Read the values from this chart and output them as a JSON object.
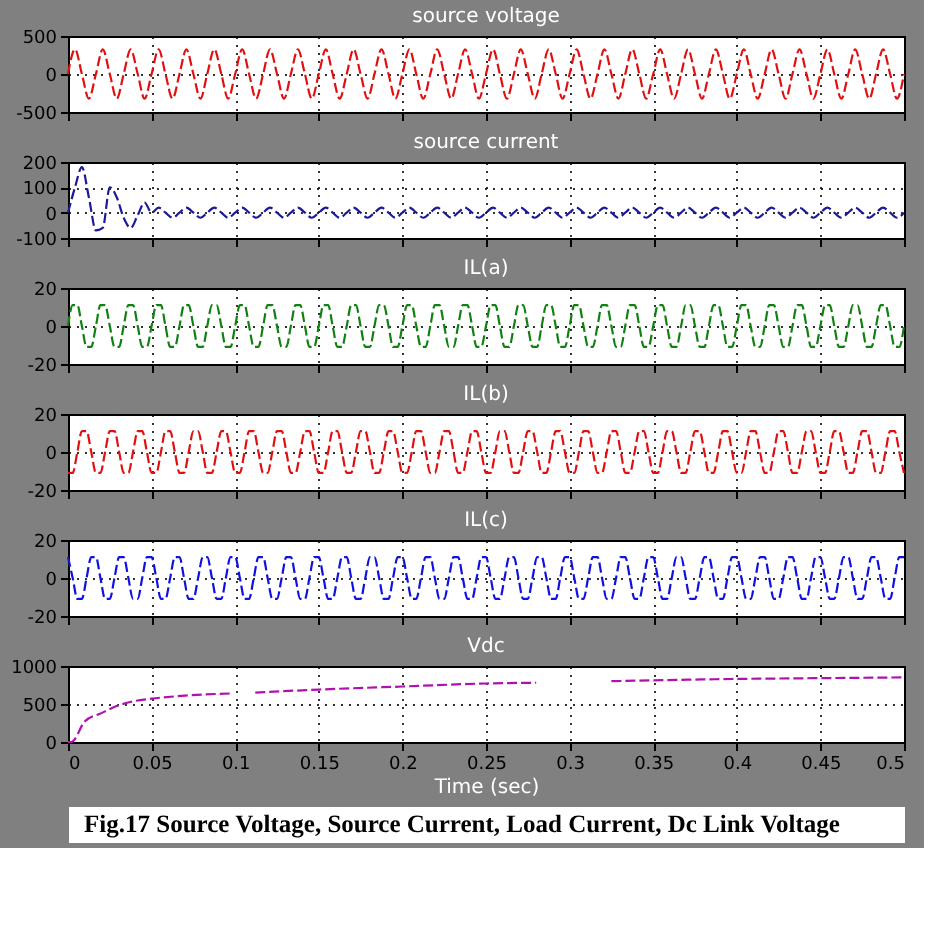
{
  "chart_data": [
    {
      "type": "line",
      "line_style": "dashed",
      "title": "source voltage",
      "color": "#e01010",
      "xlim": [
        0,
        0.5
      ],
      "xticks": [
        0,
        0.05,
        0.1,
        0.15,
        0.2,
        0.25,
        0.3,
        0.35,
        0.4,
        0.45,
        0.5
      ],
      "ylim": [
        -500,
        500
      ],
      "yticks": [
        -500,
        0,
        500
      ],
      "grid": true,
      "tick_labels": "y",
      "x": [
        0,
        0.0042,
        0.0083,
        0.0125,
        0.0167,
        0.0208,
        0.025,
        0.0292,
        0.0333,
        0.0375,
        0.0417,
        0.0458,
        0.05,
        0.0542,
        0.0583,
        0.0625,
        0.0667,
        0.0708,
        0.075,
        0.0792,
        0.0833,
        0.0875,
        0.0917,
        0.0958,
        0.1,
        0.1042,
        0.1083,
        0.1125,
        0.1167,
        0.1208,
        0.125,
        0.1292,
        0.1333,
        0.1375,
        0.1417,
        0.1458,
        0.15,
        0.1542,
        0.1583,
        0.1625,
        0.1667,
        0.1708,
        0.175,
        0.1792,
        0.1833,
        0.1875,
        0.1917,
        0.1958,
        0.2,
        0.2042,
        0.2083,
        0.2125,
        0.2167,
        0.2208,
        0.225,
        0.2292,
        0.2333,
        0.2375,
        0.2417,
        0.2458,
        0.25,
        0.2542,
        0.2583,
        0.2625,
        0.2667,
        0.2708,
        0.275,
        0.2792,
        0.2833,
        0.2875,
        0.2917,
        0.2958,
        0.3,
        0.3042,
        0.3083,
        0.3125,
        0.3167,
        0.3208,
        0.325,
        0.3292,
        0.3333,
        0.3375,
        0.3417,
        0.3458,
        0.35,
        0.3542,
        0.3583,
        0.3625,
        0.3667,
        0.3708,
        0.375,
        0.3792,
        0.3833,
        0.3875,
        0.3917,
        0.3958,
        0.4,
        0.4042,
        0.4083,
        0.4125,
        0.4167,
        0.4208,
        0.425,
        0.4292,
        0.4333,
        0.4375,
        0.4417,
        0.4458,
        0.45,
        0.4542,
        0.4583,
        0.4625,
        0.4667,
        0.4708,
        0.475,
        0.4792,
        0.4833,
        0.4875,
        0.4917,
        0.4958,
        0.5
      ],
      "values": [
        0,
        325,
        0,
        -325,
        0,
        325,
        0,
        -325,
        0,
        325,
        0,
        -325,
        0,
        325,
        0,
        -325,
        0,
        325,
        0,
        -325,
        0,
        325,
        0,
        -325,
        0,
        325,
        0,
        -325,
        0,
        325,
        0,
        -325,
        0,
        325,
        0,
        -325,
        0,
        325,
        0,
        -325,
        0,
        325,
        0,
        -325,
        0,
        325,
        0,
        -325,
        0,
        325,
        0,
        -325,
        0,
        325,
        0,
        -325,
        0,
        325,
        0,
        -325,
        0,
        325,
        0,
        -325,
        0,
        325,
        0,
        -325,
        0,
        325,
        0,
        -325,
        0,
        325,
        0,
        -325,
        0,
        325,
        0,
        -325,
        0,
        325,
        0,
        -325,
        0,
        325,
        0,
        -325,
        0,
        325,
        0,
        -325,
        0,
        325,
        0,
        -325,
        0,
        325,
        0,
        -325,
        0,
        325,
        0,
        -325,
        0,
        325,
        0,
        -325,
        0,
        325,
        0,
        -325,
        0,
        325,
        0,
        -325,
        0,
        325,
        0,
        -325,
        0
      ]
    },
    {
      "type": "line",
      "line_style": "dashed",
      "title": "source current",
      "color": "#1a1a9a",
      "xlim": [
        0,
        0.5
      ],
      "xticks": [
        0,
        0.05,
        0.1,
        0.15,
        0.2,
        0.25,
        0.3,
        0.35,
        0.4,
        0.45,
        0.5
      ],
      "ylim": [
        -100,
        200
      ],
      "yticks": [
        -100,
        0,
        100,
        200
      ],
      "grid": true,
      "tick_labels": "y",
      "x": [
        0,
        0.0042,
        0.0083,
        0.0125,
        0.0167,
        0.0208,
        0.025,
        0.0292,
        0.0333,
        0.0375,
        0.0417,
        0.0458,
        0.05,
        0.0542,
        0.0583,
        0.0625,
        0.0667,
        0.0708,
        0.075,
        0.0792,
        0.0833,
        0.0875,
        0.0917,
        0.0958,
        0.1,
        0.1042,
        0.1083,
        0.1125,
        0.1167,
        0.1208,
        0.125,
        0.1292,
        0.1333,
        0.1375,
        0.1417,
        0.1458,
        0.15,
        0.1542,
        0.1583,
        0.1625,
        0.1667,
        0.1708,
        0.175,
        0.1792,
        0.1833,
        0.1875,
        0.1917,
        0.1958,
        0.2,
        0.2042,
        0.2083,
        0.2125,
        0.2167,
        0.2208,
        0.225,
        0.2292,
        0.2333,
        0.2375,
        0.2417,
        0.2458,
        0.25,
        0.2542,
        0.2583,
        0.2625,
        0.2667,
        0.2708,
        0.275,
        0.2792,
        0.2833,
        0.2875,
        0.2917,
        0.2958,
        0.3,
        0.3042,
        0.3083,
        0.3125,
        0.3167,
        0.3208,
        0.325,
        0.3292,
        0.3333,
        0.3375,
        0.3417,
        0.3458,
        0.35,
        0.3542,
        0.3583,
        0.3625,
        0.3667,
        0.3708,
        0.375,
        0.3792,
        0.3833,
        0.3875,
        0.3917,
        0.3958,
        0.4,
        0.4042,
        0.4083,
        0.4125,
        0.4167,
        0.4208,
        0.425,
        0.4292,
        0.4333,
        0.4375,
        0.4417,
        0.4458,
        0.45,
        0.4542,
        0.4583,
        0.4625,
        0.4667,
        0.4708,
        0.475,
        0.4792,
        0.4833,
        0.4875,
        0.4917,
        0.4958,
        0.5
      ],
      "values": [
        0,
        100,
        180,
        60,
        -70,
        -60,
        100,
        60,
        -20,
        -60,
        -10,
        40,
        0,
        20,
        0,
        -20,
        0,
        20,
        0,
        -20,
        0,
        20,
        0,
        -20,
        0,
        20,
        0,
        -20,
        0,
        20,
        0,
        -20,
        0,
        20,
        0,
        -20,
        0,
        20,
        0,
        -20,
        0,
        20,
        0,
        -20,
        0,
        20,
        0,
        -20,
        0,
        20,
        0,
        -20,
        0,
        20,
        0,
        -20,
        0,
        20,
        0,
        -20,
        0,
        20,
        0,
        -20,
        0,
        20,
        0,
        -20,
        0,
        20,
        0,
        -20,
        0,
        20,
        0,
        -20,
        0,
        20,
        0,
        -20,
        0,
        20,
        0,
        -20,
        0,
        20,
        0,
        -20,
        0,
        20,
        0,
        -20,
        0,
        20,
        0,
        -20,
        0,
        20,
        0,
        -20,
        0,
        20,
        0,
        -20,
        0,
        20,
        0,
        -20,
        0,
        20,
        0,
        -20,
        0,
        20,
        0,
        -20,
        0,
        20,
        0,
        -20,
        0
      ]
    },
    {
      "type": "line",
      "line_style": "dashed",
      "title": "IL(a)",
      "color": "#108010",
      "xlim": [
        0,
        0.5
      ],
      "xticks": [
        0,
        0.05,
        0.1,
        0.15,
        0.2,
        0.25,
        0.3,
        0.35,
        0.4,
        0.45,
        0.5
      ],
      "ylim": [
        -20,
        20
      ],
      "yticks": [
        -20,
        0,
        20
      ],
      "grid": true,
      "tick_labels": "y",
      "x": [
        0,
        0.0028,
        0.0056,
        0.0083,
        0.0111,
        0.0139,
        0.0167,
        0.0194,
        0.0222,
        0.025,
        0.0278,
        0.0306,
        0.0333,
        0.0361,
        0.0389,
        0.0417,
        0.0444,
        0.0472,
        0.05,
        0.0528,
        0.0556,
        0.0583,
        0.0611,
        0.0639,
        0.0667,
        0.0694,
        0.0722,
        0.075,
        0.0778,
        0.0806,
        0.0833,
        0.0861,
        0.0889,
        0.0917,
        0.0944,
        0.0972,
        0.1,
        0.1028,
        0.1056,
        0.1083,
        0.1111,
        0.1139,
        0.1167,
        0.1194,
        0.1222,
        0.125,
        0.1278,
        0.1306,
        0.1333,
        0.1361,
        0.1389,
        0.1417,
        0.1444,
        0.1472,
        0.15,
        0.1528,
        0.1556,
        0.1583,
        0.1611,
        0.1639,
        0.1667,
        0.1694,
        0.1722,
        0.175,
        0.1778,
        0.1806,
        0.1833,
        0.1861,
        0.1889,
        0.1917,
        0.1944,
        0.1972,
        0.2,
        0.2028,
        0.2056,
        0.2083,
        0.2111,
        0.2139,
        0.2167,
        0.2194,
        0.2222,
        0.225,
        0.2278,
        0.2306,
        0.2333,
        0.2361,
        0.2389,
        0.2417,
        0.2444,
        0.2472,
        0.25,
        0.2528,
        0.2556,
        0.2583,
        0.2611,
        0.2639,
        0.2667,
        0.2694,
        0.2722,
        0.275,
        0.2778,
        0.2806,
        0.2833,
        0.2861,
        0.2889,
        0.2917,
        0.2944,
        0.2972,
        0.3,
        0.3028,
        0.3056,
        0.3083,
        0.3111,
        0.3139,
        0.3167,
        0.3194,
        0.3222,
        0.325,
        0.3278,
        0.3306,
        0.3333,
        0.3361,
        0.3389,
        0.3417,
        0.3444,
        0.3472,
        0.35,
        0.3528,
        0.3556,
        0.3583,
        0.3611,
        0.3639,
        0.3667,
        0.3694,
        0.3722,
        0.375,
        0.3778,
        0.3806,
        0.3833,
        0.3861,
        0.3889,
        0.3917,
        0.3944,
        0.3972,
        0.4,
        0.4028,
        0.4056,
        0.4083,
        0.4111,
        0.4139,
        0.4167,
        0.4194,
        0.4222,
        0.425,
        0.4278,
        0.4306,
        0.4333,
        0.4361,
        0.4389,
        0.4417,
        0.4444,
        0.4472,
        0.45,
        0.4528,
        0.4556,
        0.4583,
        0.4611,
        0.4639,
        0.4667,
        0.4694,
        0.4722,
        0.475,
        0.4778,
        0.4806,
        0.4833,
        0.4861,
        0.4889,
        0.4917,
        0.4944,
        0.4972,
        0.5
      ],
      "values": [
        0,
        11,
        11,
        0,
        -11,
        -11,
        0,
        11,
        11,
        0,
        -11,
        -11,
        0,
        11,
        11,
        0,
        -11,
        -11,
        0,
        11,
        11,
        0,
        -11,
        -11,
        0,
        11,
        11,
        0,
        -11,
        -11,
        0,
        11,
        11,
        0,
        -11,
        -11,
        0,
        11,
        11,
        0,
        -11,
        -11,
        0,
        11,
        11,
        0,
        -11,
        -11,
        0,
        11,
        11,
        0,
        -11,
        -11,
        0,
        11,
        11,
        0,
        -11,
        -11,
        0,
        11,
        11,
        0,
        -11,
        -11,
        0,
        11,
        11,
        0,
        -11,
        -11,
        0,
        11,
        11,
        0,
        -11,
        -11,
        0,
        11,
        11,
        0,
        -11,
        -11,
        0,
        11,
        11,
        0,
        -11,
        -11,
        0,
        11,
        11,
        0,
        -11,
        -11,
        0,
        11,
        11,
        0,
        -11,
        -11,
        0,
        11,
        11,
        0,
        -11,
        -11,
        0,
        11,
        11,
        0,
        -11,
        -11,
        0,
        11,
        11,
        0,
        -11,
        -11,
        0,
        11,
        11,
        0,
        -11,
        -11,
        0,
        11,
        11,
        0,
        -11,
        -11,
        0,
        11,
        11,
        0,
        -11,
        -11,
        0,
        11,
        11,
        0,
        -11,
        -11,
        0,
        11,
        11,
        0,
        -11,
        -11,
        0,
        11,
        11,
        0,
        -11,
        -11,
        0,
        11,
        11,
        0,
        -11,
        -11,
        0,
        11,
        11,
        0,
        -11,
        -11,
        0,
        11,
        11,
        0,
        -11,
        -11,
        0,
        11,
        11,
        0,
        -11,
        -11,
        0
      ]
    },
    {
      "type": "line",
      "line_style": "dashed",
      "title": "IL(b)",
      "color": "#e01010",
      "xlim": [
        0,
        0.5
      ],
      "xticks": [
        0,
        0.05,
        0.1,
        0.15,
        0.2,
        0.25,
        0.3,
        0.35,
        0.4,
        0.45,
        0.5
      ],
      "ylim": [
        -20,
        20
      ],
      "yticks": [
        -20,
        0,
        20
      ],
      "grid": true,
      "tick_labels": "y",
      "x": [
        0,
        0.0028,
        0.0056,
        0.0083,
        0.0111,
        0.0139,
        0.0167,
        0.0194,
        0.0222,
        0.025,
        0.0278,
        0.0306,
        0.0333,
        0.0361,
        0.0389,
        0.0417,
        0.0444,
        0.0472,
        0.05,
        0.0528,
        0.0556,
        0.0583,
        0.0611,
        0.0639,
        0.0667,
        0.0694,
        0.0722,
        0.075,
        0.0778,
        0.0806,
        0.0833,
        0.0861,
        0.0889,
        0.0917,
        0.0944,
        0.0972,
        0.1,
        0.1028,
        0.1056,
        0.1083,
        0.1111,
        0.1139,
        0.1167,
        0.1194,
        0.1222,
        0.125,
        0.1278,
        0.1306,
        0.1333,
        0.1361,
        0.1389,
        0.1417,
        0.1444,
        0.1472,
        0.15,
        0.1528,
        0.1556,
        0.1583,
        0.1611,
        0.1639,
        0.1667,
        0.1694,
        0.1722,
        0.175,
        0.1778,
        0.1806,
        0.1833,
        0.1861,
        0.1889,
        0.1917,
        0.1944,
        0.1972,
        0.2,
        0.2028,
        0.2056,
        0.2083,
        0.2111,
        0.2139,
        0.2167,
        0.2194,
        0.2222,
        0.225,
        0.2278,
        0.2306,
        0.2333,
        0.2361,
        0.2389,
        0.2417,
        0.2444,
        0.2472,
        0.25,
        0.2528,
        0.2556,
        0.2583,
        0.2611,
        0.2639,
        0.2667,
        0.2694,
        0.2722,
        0.275,
        0.2778,
        0.2806,
        0.2833,
        0.2861,
        0.2889,
        0.2917,
        0.2944,
        0.2972,
        0.3,
        0.3028,
        0.3056,
        0.3083,
        0.3111,
        0.3139,
        0.3167,
        0.3194,
        0.3222,
        0.325,
        0.3278,
        0.3306,
        0.3333,
        0.3361,
        0.3389,
        0.3417,
        0.3444,
        0.3472,
        0.35,
        0.3528,
        0.3556,
        0.3583,
        0.3611,
        0.3639,
        0.3667,
        0.3694,
        0.3722,
        0.375,
        0.3778,
        0.3806,
        0.3833,
        0.3861,
        0.3889,
        0.3917,
        0.3944,
        0.3972,
        0.4,
        0.4028,
        0.4056,
        0.4083,
        0.4111,
        0.4139,
        0.4167,
        0.4194,
        0.4222,
        0.425,
        0.4278,
        0.4306,
        0.4333,
        0.4361,
        0.4389,
        0.4417,
        0.4444,
        0.4472,
        0.45,
        0.4528,
        0.4556,
        0.4583,
        0.4611,
        0.4639,
        0.4667,
        0.4694,
        0.4722,
        0.475,
        0.4778,
        0.4806,
        0.4833,
        0.4861,
        0.4889,
        0.4917,
        0.4944,
        0.4972,
        0.5
      ],
      "values": [
        -11,
        -11,
        0,
        11,
        11,
        0,
        -11,
        -11,
        0,
        11,
        11,
        0,
        -11,
        -11,
        0,
        11,
        11,
        0,
        -11,
        -11,
        0,
        11,
        11,
        0,
        -11,
        -11,
        0,
        11,
        11,
        0,
        -11,
        -11,
        0,
        11,
        11,
        0,
        -11,
        -11,
        0,
        11,
        11,
        0,
        -11,
        -11,
        0,
        11,
        11,
        0,
        -11,
        -11,
        0,
        11,
        11,
        0,
        -11,
        -11,
        0,
        11,
        11,
        0,
        -11,
        -11,
        0,
        11,
        11,
        0,
        -11,
        -11,
        0,
        11,
        11,
        0,
        -11,
        -11,
        0,
        11,
        11,
        0,
        -11,
        -11,
        0,
        11,
        11,
        0,
        -11,
        -11,
        0,
        11,
        11,
        0,
        -11,
        -11,
        0,
        11,
        11,
        0,
        -11,
        -11,
        0,
        11,
        11,
        0,
        -11,
        -11,
        0,
        11,
        11,
        0,
        -11,
        -11,
        0,
        11,
        11,
        0,
        -11,
        -11,
        0,
        11,
        11,
        0,
        -11,
        -11,
        0,
        11,
        11,
        0,
        -11,
        -11,
        0,
        11,
        11,
        0,
        -11,
        -11,
        0,
        11,
        11,
        0,
        -11,
        -11,
        0,
        11,
        11,
        0,
        -11,
        -11,
        0,
        11,
        11,
        0,
        -11,
        -11,
        0,
        11,
        11,
        0,
        -11,
        -11,
        0,
        11,
        11,
        0,
        -11,
        -11,
        0,
        11,
        11,
        0,
        -11,
        -11,
        0,
        11,
        11,
        0,
        -11,
        -11,
        0,
        11,
        11,
        0,
        -11
      ]
    },
    {
      "type": "line",
      "line_style": "dashed",
      "title": "IL(c)",
      "color": "#1010e0",
      "xlim": [
        0,
        0.5
      ],
      "xticks": [
        0,
        0.05,
        0.1,
        0.15,
        0.2,
        0.25,
        0.3,
        0.35,
        0.4,
        0.45,
        0.5
      ],
      "ylim": [
        -20,
        20
      ],
      "yticks": [
        -20,
        0,
        20
      ],
      "grid": true,
      "tick_labels": "y",
      "x": [
        0,
        0.0028,
        0.0056,
        0.0083,
        0.0111,
        0.0139,
        0.0167,
        0.0194,
        0.0222,
        0.025,
        0.0278,
        0.0306,
        0.0333,
        0.0361,
        0.0389,
        0.0417,
        0.0444,
        0.0472,
        0.05,
        0.0528,
        0.0556,
        0.0583,
        0.0611,
        0.0639,
        0.0667,
        0.0694,
        0.0722,
        0.075,
        0.0778,
        0.0806,
        0.0833,
        0.0861,
        0.0889,
        0.0917,
        0.0944,
        0.0972,
        0.1,
        0.1028,
        0.1056,
        0.1083,
        0.1111,
        0.1139,
        0.1167,
        0.1194,
        0.1222,
        0.125,
        0.1278,
        0.1306,
        0.1333,
        0.1361,
        0.1389,
        0.1417,
        0.1444,
        0.1472,
        0.15,
        0.1528,
        0.1556,
        0.1583,
        0.1611,
        0.1639,
        0.1667,
        0.1694,
        0.1722,
        0.175,
        0.1778,
        0.1806,
        0.1833,
        0.1861,
        0.1889,
        0.1917,
        0.1944,
        0.1972,
        0.2,
        0.2028,
        0.2056,
        0.2083,
        0.2111,
        0.2139,
        0.2167,
        0.2194,
        0.2222,
        0.225,
        0.2278,
        0.2306,
        0.2333,
        0.2361,
        0.2389,
        0.2417,
        0.2444,
        0.2472,
        0.25,
        0.2528,
        0.2556,
        0.2583,
        0.2611,
        0.2639,
        0.2667,
        0.2694,
        0.2722,
        0.275,
        0.2778,
        0.2806,
        0.2833,
        0.2861,
        0.2889,
        0.2917,
        0.2944,
        0.2972,
        0.3,
        0.3028,
        0.3056,
        0.3083,
        0.3111,
        0.3139,
        0.3167,
        0.3194,
        0.3222,
        0.325,
        0.3278,
        0.3306,
        0.3333,
        0.3361,
        0.3389,
        0.3417,
        0.3444,
        0.3472,
        0.35,
        0.3528,
        0.3556,
        0.3583,
        0.3611,
        0.3639,
        0.3667,
        0.3694,
        0.3722,
        0.375,
        0.3778,
        0.3806,
        0.3833,
        0.3861,
        0.3889,
        0.3917,
        0.3944,
        0.3972,
        0.4,
        0.4028,
        0.4056,
        0.4083,
        0.4111,
        0.4139,
        0.4167,
        0.4194,
        0.4222,
        0.425,
        0.4278,
        0.4306,
        0.4333,
        0.4361,
        0.4389,
        0.4417,
        0.4444,
        0.4472,
        0.45,
        0.4528,
        0.4556,
        0.4583,
        0.4611,
        0.4639,
        0.4667,
        0.4694,
        0.4722,
        0.475,
        0.4778,
        0.4806,
        0.4833,
        0.4861,
        0.4889,
        0.4917,
        0.4944,
        0.4972,
        0.5
      ],
      "values": [
        11,
        0,
        -11,
        -11,
        0,
        11,
        11,
        0,
        -11,
        -11,
        0,
        11,
        11,
        0,
        -11,
        -11,
        0,
        11,
        11,
        0,
        -11,
        -11,
        0,
        11,
        11,
        0,
        -11,
        -11,
        0,
        11,
        11,
        0,
        -11,
        -11,
        0,
        11,
        11,
        0,
        -11,
        -11,
        0,
        11,
        11,
        0,
        -11,
        -11,
        0,
        11,
        11,
        0,
        -11,
        -11,
        0,
        11,
        11,
        0,
        -11,
        -11,
        0,
        11,
        11,
        0,
        -11,
        -11,
        0,
        11,
        11,
        0,
        -11,
        -11,
        0,
        11,
        11,
        0,
        -11,
        -11,
        0,
        11,
        11,
        0,
        -11,
        -11,
        0,
        11,
        11,
        0,
        -11,
        -11,
        0,
        11,
        11,
        0,
        -11,
        -11,
        0,
        11,
        11,
        0,
        -11,
        -11,
        0,
        11,
        11,
        0,
        -11,
        -11,
        0,
        11,
        11,
        0,
        -11,
        -11,
        0,
        11,
        11,
        0,
        -11,
        -11,
        0,
        11,
        11,
        0,
        -11,
        -11,
        0,
        11,
        11,
        0,
        -11,
        -11,
        0,
        11,
        11,
        0,
        -11,
        -11,
        0,
        11,
        11,
        0,
        -11,
        -11,
        0,
        11,
        11,
        0,
        -11,
        -11,
        0,
        11,
        11,
        0,
        -11,
        -11,
        0,
        11,
        11,
        0,
        -11,
        -11,
        0,
        11,
        11,
        0,
        -11,
        -11,
        0,
        11,
        11,
        0,
        -11,
        -11,
        0,
        11,
        11,
        0,
        -11,
        -11,
        0,
        11,
        11
      ]
    },
    {
      "type": "line",
      "line_style": "dashed",
      "title": "Vdc",
      "xlabel": "Time (sec)",
      "color": "#b010b0",
      "xlim": [
        0,
        0.5
      ],
      "xticks": [
        0,
        0.05,
        0.1,
        0.15,
        0.2,
        0.25,
        0.3,
        0.35,
        0.4,
        0.45,
        0.5
      ],
      "ylim": [
        0,
        1000
      ],
      "yticks": [
        0,
        500,
        1000
      ],
      "grid": true,
      "x": [
        0,
        0.002,
        0.01,
        0.02,
        0.03,
        0.04,
        0.05,
        0.07,
        0.099,
        0.105,
        0.112,
        0.15,
        0.2,
        0.25,
        0.28,
        0.3,
        0.325,
        0.4,
        0.45,
        0.5
      ],
      "values": [
        0,
        0,
        270,
        380,
        480,
        540,
        570,
        610,
        640,
        null,
        650,
        690,
        730,
        770,
        780,
        null,
        800,
        830,
        840,
        850
      ],
      "annotations": [
        "Fig.17 Source Voltage, Source Current, Load Current, Dc Link Voltage"
      ]
    }
  ]
}
